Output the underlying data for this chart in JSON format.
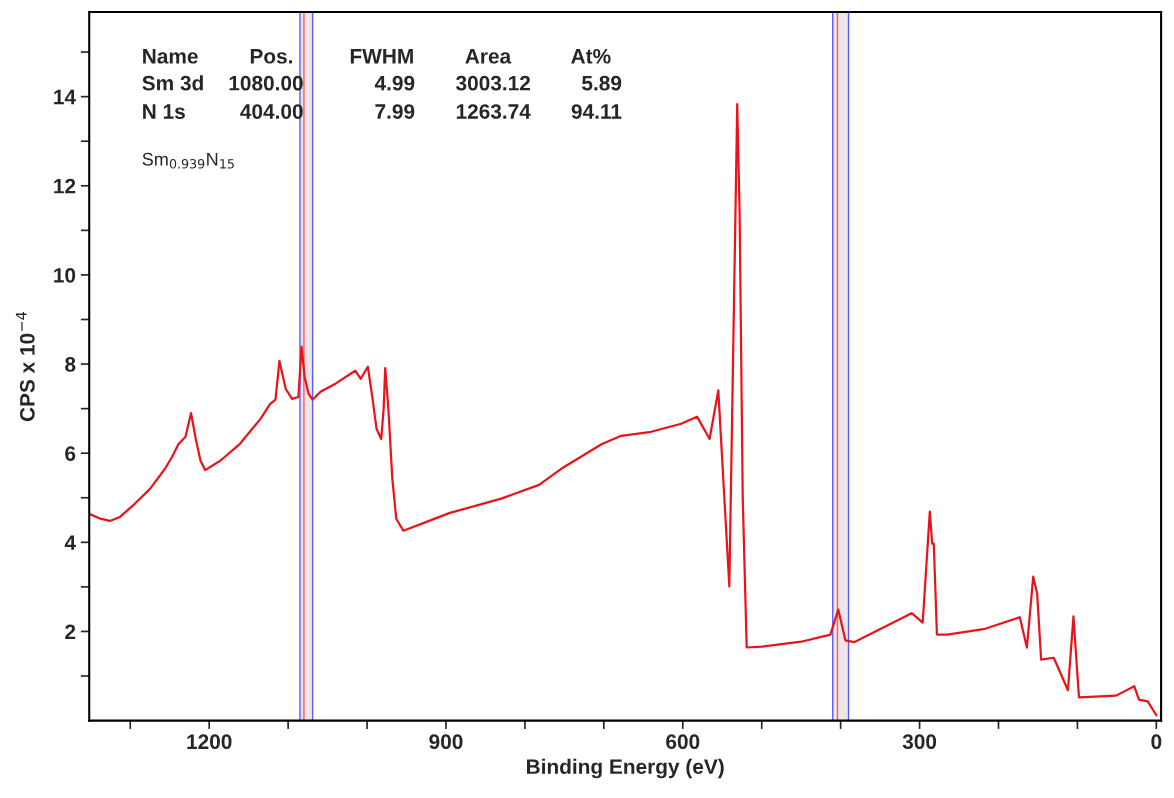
{
  "chart_data": {
    "type": "line",
    "xlabel": "Binding Energy (eV)",
    "ylabel": "CPS x 10$^{−4}$",
    "annotations": [
      "Name",
      "Pos.",
      "FWHM",
      "Area",
      "At%",
      "Sm 3d",
      "1080.00",
      "4.99",
      "3003.12",
      "5.89",
      "N 1s",
      "404.00",
      "7.99",
      "1263.74",
      "94.11",
      "Sm$_{0.939}$N$_{15}$"
    ],
    "series": [
      {
        "color": "#e8141b",
        "x": [
          1352,
          1338,
          1326,
          1313,
          1294,
          1275,
          1256,
          1247,
          1239,
          1230,
          1223,
          1217,
          1211,
          1205,
          1186,
          1161,
          1135,
          1123,
          1116,
          1111,
          1103,
          1095,
          1087,
          1083,
          1079,
          1074,
          1069,
          1059,
          1040,
          1015,
          1008,
          999,
          993,
          988,
          982,
          979,
          977,
          973,
          968,
          963,
          954,
          895,
          830,
          782,
          754,
          703,
          678,
          640,
          602,
          582,
          566,
          555,
          541,
          531,
          528,
          524,
          519,
          500,
          450,
          413,
          403,
          394,
          383,
          310,
          296,
          287,
          284,
          282,
          278,
          265,
          217,
          173,
          164,
          156,
          151,
          146,
          130,
          112,
          105,
          103,
          98,
          51,
          28,
          22,
          11,
          0
        ],
        "values": [
          4.64,
          4.53,
          4.48,
          4.57,
          4.87,
          5.2,
          5.65,
          5.92,
          6.2,
          6.37,
          6.9,
          6.32,
          5.83,
          5.62,
          5.83,
          6.21,
          6.77,
          7.1,
          7.2,
          8.07,
          7.44,
          7.22,
          7.26,
          8.39,
          7.7,
          7.33,
          7.2,
          7.38,
          7.56,
          7.85,
          7.67,
          7.94,
          7.22,
          6.55,
          6.32,
          7.0,
          7.91,
          7.0,
          5.43,
          4.53,
          4.26,
          4.66,
          4.98,
          5.29,
          5.65,
          6.2,
          6.39,
          6.48,
          6.66,
          6.82,
          6.32,
          7.41,
          3.01,
          13.83,
          11.41,
          4.98,
          1.64,
          1.66,
          1.77,
          1.93,
          2.49,
          1.8,
          1.76,
          2.41,
          2.2,
          4.69,
          3.97,
          3.97,
          1.93,
          1.93,
          2.06,
          2.32,
          1.64,
          3.23,
          2.85,
          1.37,
          1.41,
          0.68,
          2.34,
          1.8,
          0.52,
          0.56,
          0.77,
          0.47,
          0.43,
          0.12
        ]
      }
    ],
    "xlim": [
      1352,
      -6
    ],
    "xticks": [
      {
        "value": 1300,
        "label": null
      },
      1200,
      {
        "value": 1100,
        "label": null
      },
      {
        "value": 1000,
        "label": null
      },
      900,
      {
        "value": 800,
        "label": null
      },
      {
        "value": 700,
        "label": null
      },
      600,
      {
        "value": 500,
        "label": null
      },
      {
        "value": 400,
        "label": null
      },
      300,
      {
        "value": 200,
        "label": null
      },
      {
        "value": 100,
        "label": null
      },
      0
    ],
    "ylim": [
      0,
      15.9
    ],
    "yticks": [
      {
        "value": 1,
        "label": null
      },
      2,
      {
        "value": 3,
        "label": null
      },
      4,
      {
        "value": 5,
        "label": null
      },
      6,
      {
        "value": 7,
        "label": null
      },
      8,
      {
        "value": 9,
        "label": null
      },
      10,
      {
        "value": 11,
        "label": null
      },
      12,
      {
        "value": 13,
        "label": null
      },
      14,
      {
        "value": 15,
        "label": null
      }
    ],
    "bands": [
      {
        "axis": "x",
        "from": 1085,
        "to": 1069,
        "color": "#efe6ea"
      },
      {
        "axis": "x",
        "from": 410,
        "to": 390,
        "color": "#efe6ea"
      }
    ],
    "ref_lines": [
      {
        "axis": "x",
        "value": 1085,
        "color": "#5a5aff"
      },
      {
        "axis": "x",
        "value": 1069,
        "color": "#5a5aff"
      },
      {
        "axis": "x",
        "value": 1080,
        "color": "#ff5a5a"
      },
      {
        "axis": "x",
        "value": 410,
        "color": "#5a5aff"
      },
      {
        "axis": "x",
        "value": 390,
        "color": "#5a5aff"
      },
      {
        "axis": "x",
        "value": 404,
        "color": "#ff5a5a"
      }
    ],
    "grid": false,
    "legend": false
  }
}
